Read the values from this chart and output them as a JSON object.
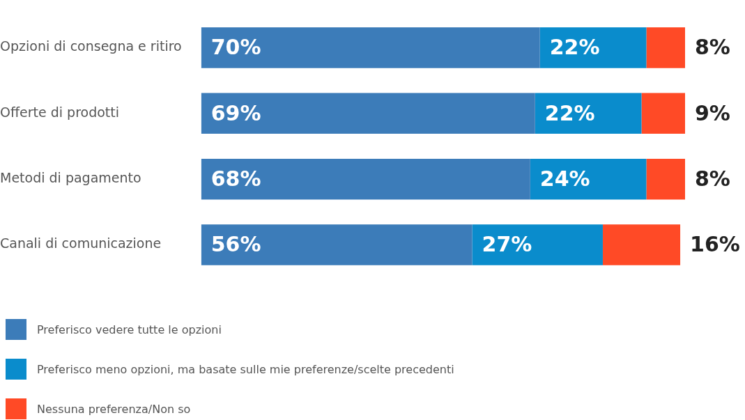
{
  "chart_data": {
    "type": "bar",
    "orientation": "horizontal",
    "stacked": true,
    "categories": [
      "Opzioni di consegna e ritiro",
      "Offerte di prodotti",
      "Metodi di pagamento",
      "Canali di comunicazione"
    ],
    "series": [
      {
        "name": "Preferisco vedere tutte le opzioni",
        "color": "#3c7cb9",
        "values": [
          70,
          69,
          68,
          56
        ],
        "value_labels": [
          "70%",
          "69%",
          "68%",
          "56%"
        ]
      },
      {
        "name": "Preferisco meno opzioni, ma basate sulle mie preferenze/scelte precedenti",
        "color": "#0a8ccc",
        "values": [
          22,
          22,
          24,
          27
        ],
        "value_labels": [
          "22%",
          "22%",
          "24%",
          "27%"
        ]
      },
      {
        "name": "Nessuna preferenza/Non so",
        "color": "#ff4a26",
        "values": [
          8,
          9,
          8,
          16
        ],
        "value_labels": [
          "8%",
          "9%",
          "8%",
          "16%"
        ]
      }
    ],
    "xlim": [
      0,
      100
    ],
    "tick_labels": "y",
    "grid": false,
    "legend": "bottom left"
  }
}
